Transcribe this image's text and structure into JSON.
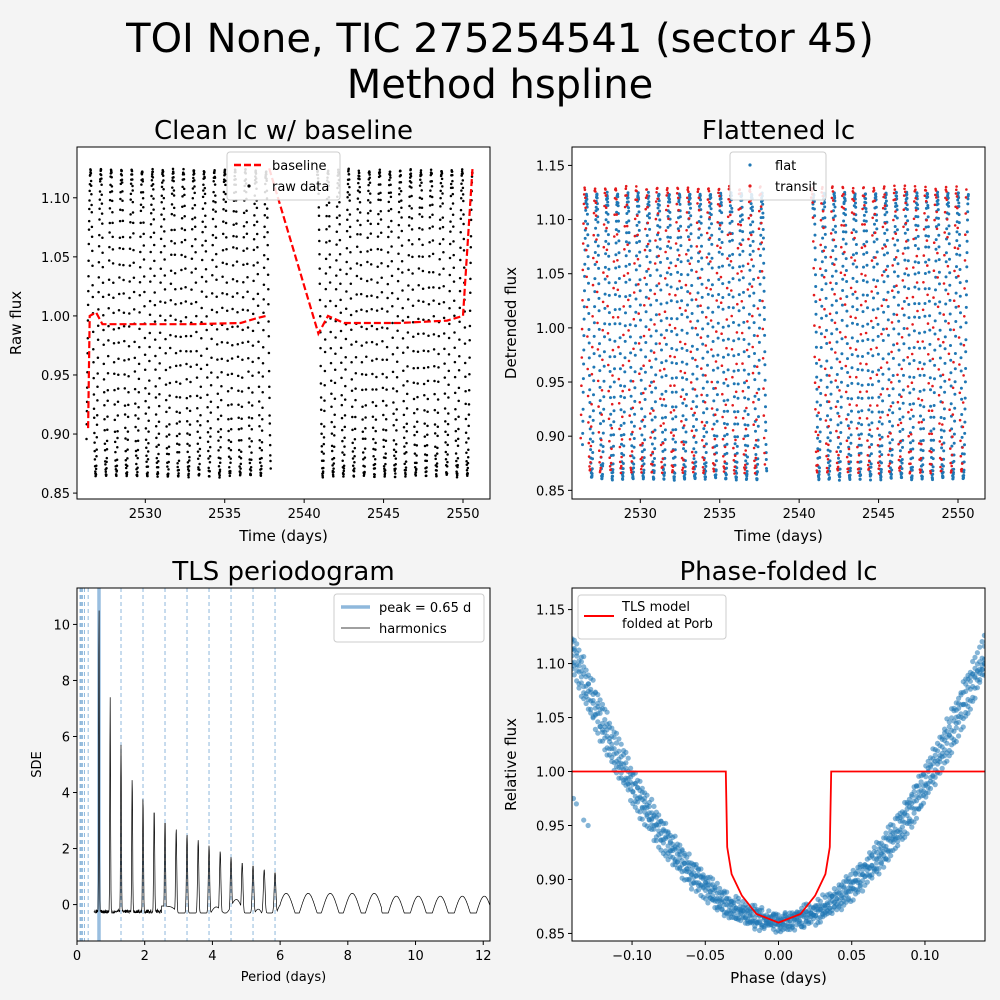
{
  "figure": {
    "title_line1": "TOI None, TIC 275254541 (sector 45)",
    "title_line2": "Method hspline",
    "colors": {
      "background": "#f4f4f4",
      "flat": "#1f77b4",
      "transit": "#e41a1c",
      "raw": "#000000",
      "baseline": "#ff0000",
      "peak": "#8fb8dc",
      "model": "#ff0000"
    }
  },
  "chart_data": [
    {
      "id": "clean",
      "type": "scatter",
      "title": "Clean lc w/ baseline",
      "xlabel": "Time (days)",
      "ylabel": "Raw flux",
      "xlim": [
        2525.7,
        2551.7
      ],
      "ylim": [
        0.845,
        1.143
      ],
      "xticks": [
        2530,
        2535,
        2540,
        2545,
        2550
      ],
      "yticks": [
        0.85,
        0.9,
        0.95,
        1.0,
        1.05,
        1.1
      ],
      "ytick_labels": [
        "0.85",
        "0.90",
        "0.95",
        "1.00",
        "1.05",
        "1.10"
      ],
      "legend": {
        "placement": "upper-center",
        "entries": [
          "baseline",
          "raw data"
        ]
      },
      "segments": [
        [
          2526.3,
          2537.9
        ],
        [
          2540.8,
          2550.6
        ]
      ],
      "flux_range": [
        0.862,
        1.125
      ],
      "baseline": [
        [
          2526.4,
          0.905
        ],
        [
          2526.5,
          1.0
        ],
        [
          2526.9,
          1.003
        ],
        [
          2527.3,
          0.993
        ],
        [
          2529.5,
          0.993
        ],
        [
          2533.0,
          0.993
        ],
        [
          2536.0,
          0.994
        ],
        [
          2537.0,
          0.998
        ],
        [
          2537.6,
          1.0
        ],
        [
          2537.8,
          1.125
        ],
        [
          2540.9,
          0.985
        ],
        [
          2541.5,
          1.0
        ],
        [
          2542.5,
          0.994
        ],
        [
          2546.0,
          0.994
        ],
        [
          2549.0,
          0.996
        ],
        [
          2550.0,
          1.0
        ],
        [
          2550.6,
          1.125
        ]
      ]
    },
    {
      "id": "flat",
      "type": "scatter",
      "title": "Flattened lc",
      "xlabel": "Time (days)",
      "ylabel": "Detrended flux",
      "xlim": [
        2525.7,
        2551.7
      ],
      "ylim": [
        0.842,
        1.167
      ],
      "xticks": [
        2530,
        2535,
        2540,
        2545,
        2550
      ],
      "yticks": [
        0.85,
        0.9,
        0.95,
        1.0,
        1.05,
        1.1,
        1.15
      ],
      "ytick_labels": [
        "0.85",
        "0.90",
        "0.95",
        "1.00",
        "1.05",
        "1.10",
        "1.15"
      ],
      "legend": {
        "placement": "upper-center",
        "entries": [
          "flat",
          "transit"
        ]
      },
      "segments": [
        [
          2526.3,
          2537.9
        ],
        [
          2540.8,
          2550.6
        ]
      ],
      "flux_range": [
        0.862,
        1.13
      ]
    },
    {
      "id": "tls",
      "type": "line",
      "title": "TLS periodogram",
      "xlabel": "Period (days)",
      "ylabel": "SDE",
      "xlim": [
        0,
        12.2
      ],
      "ylim": [
        -1.3,
        11.3
      ],
      "xticks": [
        0,
        2,
        4,
        6,
        8,
        10,
        12
      ],
      "yticks": [
        0,
        2,
        4,
        6,
        8,
        10
      ],
      "legend": {
        "placement": "top-right",
        "entries": [
          "peak = 0.65 d",
          "harmonics"
        ]
      },
      "peak_period": 0.65,
      "harmonic_lines": [
        0.09,
        0.11,
        0.13,
        0.16,
        0.22,
        0.33,
        1.3,
        1.95,
        2.6,
        3.25,
        3.9,
        4.55,
        5.2,
        5.85
      ],
      "spike_peaks": [
        [
          0.65,
          10.7
        ],
        [
          0.98,
          7.4
        ],
        [
          1.3,
          5.7
        ],
        [
          1.63,
          4.5
        ],
        [
          1.95,
          3.8
        ],
        [
          2.28,
          3.4
        ],
        [
          2.6,
          3.0
        ],
        [
          2.93,
          2.7
        ],
        [
          3.25,
          2.5
        ],
        [
          3.58,
          2.3
        ],
        [
          3.9,
          2.1
        ],
        [
          4.23,
          1.9
        ],
        [
          4.55,
          1.7
        ],
        [
          4.88,
          1.5
        ],
        [
          5.2,
          1.4
        ],
        [
          5.53,
          1.25
        ],
        [
          5.85,
          1.15
        ]
      ]
    },
    {
      "id": "fold",
      "type": "scatter",
      "title": "Phase-folded lc",
      "xlabel": "Phase (days)",
      "ylabel": "Relative flux",
      "xlim": [
        -0.141,
        0.141
      ],
      "ylim": [
        0.843,
        1.17
      ],
      "xticks": [
        -0.1,
        -0.05,
        0.0,
        0.05,
        0.1
      ],
      "xtick_labels": [
        "−0.10",
        "−0.05",
        "0.00",
        "0.05",
        "0.10"
      ],
      "yticks": [
        0.85,
        0.9,
        0.95,
        1.0,
        1.05,
        1.1,
        1.15
      ],
      "ytick_labels": [
        "0.85",
        "0.90",
        "0.95",
        "1.00",
        "1.05",
        "1.10",
        "1.15"
      ],
      "legend": {
        "placement": "top-left",
        "entries": [
          "TLS model",
          "folded at Porb"
        ]
      },
      "model": [
        [
          -0.141,
          1.0
        ],
        [
          -0.036,
          1.0
        ],
        [
          -0.035,
          0.93
        ],
        [
          -0.032,
          0.905
        ],
        [
          -0.025,
          0.885
        ],
        [
          -0.015,
          0.868
        ],
        [
          0.0,
          0.86
        ],
        [
          0.015,
          0.868
        ],
        [
          0.025,
          0.885
        ],
        [
          0.032,
          0.905
        ],
        [
          0.035,
          0.93
        ],
        [
          0.036,
          1.0
        ],
        [
          0.141,
          1.0
        ]
      ]
    }
  ]
}
